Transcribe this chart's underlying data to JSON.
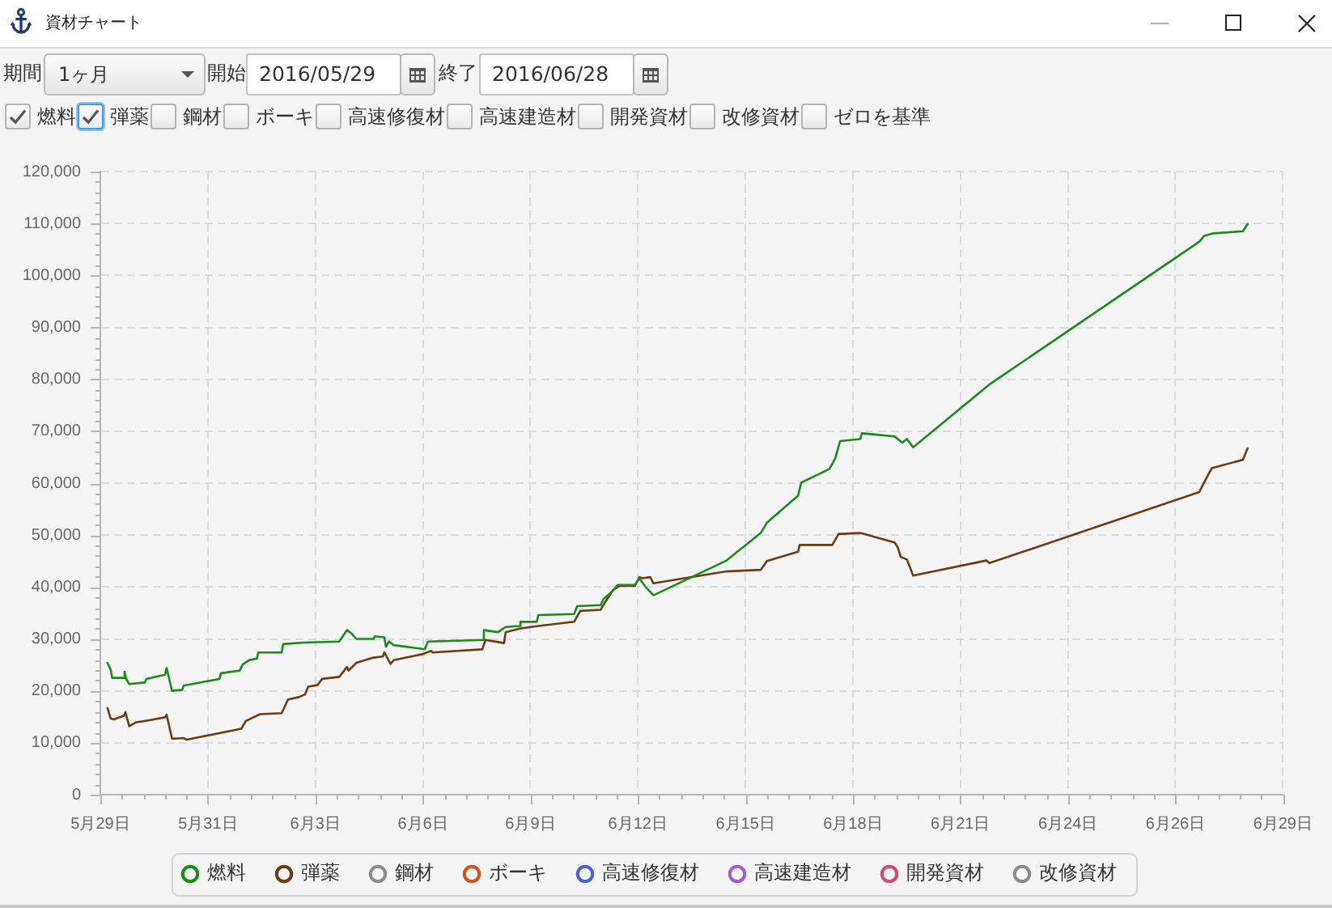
{
  "chart_data": {
    "type": "line",
    "title": "資材チャート",
    "annotations": [
      "期間",
      "1ヶ月",
      "開始",
      "2016/05/29",
      "終了",
      "2016/06/28",
      "ゼロを基準"
    ],
    "series": [
      {
        "name": "燃料",
        "color": "#1a8a1a",
        "x": [
          "2016-05-29T07:00",
          "2016-05-29T09:00",
          "2016-05-29T10:00",
          "2016-05-29T17:30",
          "2016-05-29T18:00",
          "2016-05-29T19:00",
          "2016-05-29T21:00",
          "2016-05-30T07:00",
          "2016-05-30T08:00",
          "2016-05-30T20:00",
          "2016-05-30T21:00",
          "2016-05-31T00:30",
          "2016-05-31T07:00",
          "2016-05-31T08:00",
          "2016-06-01T07:00",
          "2016-06-01T08:00",
          "2016-06-01T20:00",
          "2016-06-01T22:00",
          "2016-06-02T02:00",
          "2016-06-02T07:00",
          "2016-06-02T08:00",
          "2016-06-02T23:00",
          "2016-06-03T00:00",
          "2016-06-03T13:00",
          "2016-06-04T12:00",
          "2016-06-04T17:00",
          "2016-06-04T20:00",
          "2016-06-04T23:00",
          "2016-06-05T10:00",
          "2016-06-05T11:00",
          "2016-06-05T17:00",
          "2016-06-05T18:00",
          "2016-06-05T20:00",
          "2016-06-05T23:00",
          "2016-06-06T07:00",
          "2016-06-06T19:00",
          "2016-06-06T21:00",
          "2016-06-07T20:00",
          "2016-06-08T08:30",
          "2016-06-08T09:00",
          "2016-06-08T18:00",
          "2016-06-08T23:00",
          "2016-06-09T08:00",
          "2016-06-09T08:30",
          "2016-06-09T19:00",
          "2016-06-09T20:00",
          "2016-06-10T19:00",
          "2016-06-10T21:00",
          "2016-06-11T12:00",
          "2016-06-11T14:00",
          "2016-06-11T19:00",
          "2016-06-11T23:00",
          "2016-06-12T10:00",
          "2016-06-12T13:00",
          "2016-06-12T17:00",
          "2016-06-12T22:00",
          "2016-06-14T21:00",
          "2016-06-15T19:00",
          "2016-06-15T23:00",
          "2016-06-16T19:00",
          "2016-06-16T21:00",
          "2016-06-17T15:00",
          "2016-06-17T17:00",
          "2016-06-17T19:00",
          "2016-06-17T22:00",
          "2016-06-18T11:00",
          "2016-06-18T12:00",
          "2016-06-19T09:00",
          "2016-06-19T14:00",
          "2016-06-19T17:00",
          "2016-06-19T21:00",
          "2016-06-21T18:00",
          "2016-06-21T22:00",
          "2016-06-27T13:00",
          "2016-06-27T16:00",
          "2016-06-27T22:00",
          "2016-06-28T17:00",
          "2016-06-28T20:00"
        ],
        "values": [
          25400,
          24100,
          22500,
          22500,
          23700,
          22300,
          21300,
          21600,
          22300,
          23100,
          24400,
          20000,
          20200,
          21000,
          22300,
          23400,
          23900,
          25100,
          25900,
          26200,
          27400,
          27400,
          29000,
          29300,
          29500,
          31700,
          31000,
          30000,
          30000,
          30500,
          30300,
          28500,
          29500,
          28800,
          28500,
          28000,
          29500,
          29700,
          29800,
          31700,
          31300,
          32300,
          32500,
          33300,
          33300,
          34600,
          34800,
          36300,
          36500,
          37700,
          39000,
          40400,
          40400,
          41600,
          40000,
          38400,
          45100,
          50400,
          52400,
          57600,
          60100,
          62700,
          63700,
          64900,
          68100,
          68500,
          69600,
          69000,
          67800,
          68500,
          66900,
          78000,
          79000,
          106500,
          107600,
          108100,
          108500,
          109900
        ]
      },
      {
        "name": "弾薬",
        "color": "#6b3c14",
        "x": [
          "2016-05-29T07:00",
          "2016-05-29T09:00",
          "2016-05-29T11:00",
          "2016-05-29T17:30",
          "2016-05-29T18:30",
          "2016-05-29T21:00",
          "2016-05-30T01:00",
          "2016-05-30T09:00",
          "2016-05-30T20:00",
          "2016-05-30T21:00",
          "2016-05-31T00:30",
          "2016-05-31T08:00",
          "2016-05-31T10:00",
          "2016-06-01T21:00",
          "2016-06-02T00:00",
          "2016-06-02T09:00",
          "2016-06-02T23:00",
          "2016-06-03T03:00",
          "2016-06-03T10:00",
          "2016-06-03T14:00",
          "2016-06-03T16:00",
          "2016-06-03T22:00",
          "2016-06-04T01:00",
          "2016-06-04T12:00",
          "2016-06-04T17:00",
          "2016-06-04T18:00",
          "2016-06-04T23:00",
          "2016-06-05T10:00",
          "2016-06-05T16:00",
          "2016-06-05T17:00",
          "2016-06-05T21:00",
          "2016-06-05T23:00",
          "2016-06-06T07:00",
          "2016-06-06T18:00",
          "2016-06-06T23:00",
          "2016-06-07T00:00",
          "2016-06-08T08:00",
          "2016-06-08T10:00",
          "2016-06-08T22:00",
          "2016-06-08T23:00",
          "2016-06-09T08:00",
          "2016-06-09T20:00",
          "2016-06-10T19:00",
          "2016-06-10T23:00",
          "2016-06-11T12:00",
          "2016-06-11T15:00",
          "2016-06-11T20:00",
          "2016-06-12T00:00",
          "2016-06-12T10:00",
          "2016-06-12T13:00",
          "2016-06-12T15:00",
          "2016-06-12T20:00",
          "2016-06-12T22:00",
          "2016-06-14T21:00",
          "2016-06-15T19:00",
          "2016-06-15T23:00",
          "2016-06-16T19:00",
          "2016-06-16T20:00",
          "2016-06-17T17:00",
          "2016-06-17T21:00",
          "2016-06-18T11:00",
          "2016-06-19T09:00",
          "2016-06-19T11:00",
          "2016-06-19T13:00",
          "2016-06-19T17:00",
          "2016-06-19T21:00",
          "2016-06-21T20:00",
          "2016-06-21T22:00",
          "2016-06-27T13:00",
          "2016-06-27T16:00",
          "2016-06-27T21:00",
          "2016-06-28T17:00",
          "2016-06-28T20:00"
        ],
        "values": [
          16700,
          14700,
          14500,
          15200,
          15900,
          13200,
          13900,
          14300,
          14900,
          15400,
          10800,
          10900,
          10600,
          12700,
          14200,
          15500,
          15700,
          18300,
          18800,
          19300,
          20800,
          21100,
          22300,
          22700,
          24600,
          23900,
          25400,
          26400,
          26600,
          27400,
          25200,
          25900,
          26400,
          27100,
          27700,
          27400,
          28000,
          29800,
          29200,
          31300,
          32000,
          32500,
          33300,
          35400,
          35600,
          37100,
          39400,
          40200,
          40200,
          41900,
          41700,
          41900,
          40700,
          43000,
          43300,
          45000,
          46800,
          48100,
          48100,
          50200,
          50400,
          48600,
          47700,
          45800,
          45300,
          42200,
          45100,
          44600,
          58300,
          60100,
          62900,
          64500,
          66700
        ]
      },
      {
        "name": "鋼材",
        "color": "#8c8c8c"
      },
      {
        "name": "ボーキ",
        "color": "#d2521e"
      },
      {
        "name": "高速修復材",
        "color": "#4b5fd6"
      },
      {
        "name": "高速建造材",
        "color": "#a45ad6"
      },
      {
        "name": "開発資材",
        "color": "#d24a72"
      },
      {
        "name": "改修資材",
        "color": "#8a8a8a"
      }
    ],
    "xlim": [
      "2016-05-29T02:24",
      "2016-06-29T18:43"
    ],
    "xticks": [
      {
        "value": "2016-05-29T02:24",
        "label": "5月29日"
      },
      {
        "value": "2016-05-29T16:13",
        "label": null
      },
      {
        "value": "2016-05-30T06:03",
        "label": null
      },
      {
        "value": "2016-05-30T19:52",
        "label": null
      },
      {
        "value": "2016-05-31T09:42",
        "label": null
      },
      {
        "value": "2016-05-31T23:31",
        "label": "5月31日"
      },
      {
        "value": "2016-06-01T13:21",
        "label": null
      },
      {
        "value": "2016-06-02T03:10",
        "label": null
      },
      {
        "value": "2016-06-02T17:00",
        "label": null
      },
      {
        "value": "2016-06-03T06:49",
        "label": null
      },
      {
        "value": "2016-06-03T20:38",
        "label": "6月3日"
      },
      {
        "value": "2016-06-04T10:28",
        "label": null
      },
      {
        "value": "2016-06-05T00:17",
        "label": null
      },
      {
        "value": "2016-06-05T14:07",
        "label": null
      },
      {
        "value": "2016-06-06T03:56",
        "label": null
      },
      {
        "value": "2016-06-06T17:46",
        "label": "6月6日"
      },
      {
        "value": "2016-06-07T07:35",
        "label": null
      },
      {
        "value": "2016-06-07T21:24",
        "label": null
      },
      {
        "value": "2016-06-08T11:14",
        "label": null
      },
      {
        "value": "2016-06-09T01:03",
        "label": null
      },
      {
        "value": "2016-06-09T14:53",
        "label": "6月9日"
      },
      {
        "value": "2016-06-10T04:42",
        "label": null
      },
      {
        "value": "2016-06-10T18:32",
        "label": null
      },
      {
        "value": "2016-06-11T08:21",
        "label": null
      },
      {
        "value": "2016-06-11T22:11",
        "label": null
      },
      {
        "value": "2016-06-12T12:00",
        "label": "6月12日"
      },
      {
        "value": "2016-06-13T01:49",
        "label": null
      },
      {
        "value": "2016-06-13T15:39",
        "label": null
      },
      {
        "value": "2016-06-14T05:28",
        "label": null
      },
      {
        "value": "2016-06-14T19:18",
        "label": null
      },
      {
        "value": "2016-06-15T09:07",
        "label": "6月15日"
      },
      {
        "value": "2016-06-15T22:57",
        "label": null
      },
      {
        "value": "2016-06-16T12:46",
        "label": null
      },
      {
        "value": "2016-06-17T02:36",
        "label": null
      },
      {
        "value": "2016-06-17T16:25",
        "label": null
      },
      {
        "value": "2016-06-18T06:14",
        "label": "6月18日"
      },
      {
        "value": "2016-06-18T20:04",
        "label": null
      },
      {
        "value": "2016-06-19T09:53",
        "label": null
      },
      {
        "value": "2016-06-19T23:43",
        "label": null
      },
      {
        "value": "2016-06-20T13:32",
        "label": null
      },
      {
        "value": "2016-06-21T03:22",
        "label": "6月21日"
      },
      {
        "value": "2016-06-21T17:11",
        "label": null
      },
      {
        "value": "2016-06-22T07:00",
        "label": null
      },
      {
        "value": "2016-06-22T20:50",
        "label": null
      },
      {
        "value": "2016-06-23T10:39",
        "label": null
      },
      {
        "value": "2016-06-24T00:29",
        "label": "6月24日"
      },
      {
        "value": "2016-06-24T14:18",
        "label": null
      },
      {
        "value": "2016-06-25T04:08",
        "label": null
      },
      {
        "value": "2016-06-25T17:57",
        "label": null
      },
      {
        "value": "2016-06-26T07:47",
        "label": null
      },
      {
        "value": "2016-06-26T21:36",
        "label": "6月26日"
      },
      {
        "value": "2016-06-27T11:25",
        "label": null
      },
      {
        "value": "2016-06-28T01:15",
        "label": null
      },
      {
        "value": "2016-06-28T15:04",
        "label": null
      },
      {
        "value": "2016-06-29T04:54",
        "label": null
      },
      {
        "value": "2016-06-29T18:43",
        "label": "6月29日"
      }
    ],
    "ylim": [
      0,
      120000
    ],
    "yticks": [
      {
        "value": 0,
        "label": "0"
      },
      {
        "value": 2000,
        "label": null
      },
      {
        "value": 4000,
        "label": null
      },
      {
        "value": 6000,
        "label": null
      },
      {
        "value": 8000,
        "label": null
      },
      {
        "value": 10000,
        "label": "10,000"
      },
      {
        "value": 12000,
        "label": null
      },
      {
        "value": 14000,
        "label": null
      },
      {
        "value": 16000,
        "label": null
      },
      {
        "value": 18000,
        "label": null
      },
      {
        "value": 20000,
        "label": "20,000"
      },
      {
        "value": 22000,
        "label": null
      },
      {
        "value": 24000,
        "label": null
      },
      {
        "value": 26000,
        "label": null
      },
      {
        "value": 28000,
        "label": null
      },
      {
        "value": 30000,
        "label": "30,000"
      },
      {
        "value": 32000,
        "label": null
      },
      {
        "value": 34000,
        "label": null
      },
      {
        "value": 36000,
        "label": null
      },
      {
        "value": 38000,
        "label": null
      },
      {
        "value": 40000,
        "label": "40,000"
      },
      {
        "value": 42000,
        "label": null
      },
      {
        "value": 44000,
        "label": null
      },
      {
        "value": 46000,
        "label": null
      },
      {
        "value": 48000,
        "label": null
      },
      {
        "value": 50000,
        "label": "50,000"
      },
      {
        "value": 52000,
        "label": null
      },
      {
        "value": 54000,
        "label": null
      },
      {
        "value": 56000,
        "label": null
      },
      {
        "value": 58000,
        "label": null
      },
      {
        "value": 60000,
        "label": "60,000"
      },
      {
        "value": 62000,
        "label": null
      },
      {
        "value": 64000,
        "label": null
      },
      {
        "value": 66000,
        "label": null
      },
      {
        "value": 68000,
        "label": null
      },
      {
        "value": 70000,
        "label": "70,000"
      },
      {
        "value": 72000,
        "label": null
      },
      {
        "value": 74000,
        "label": null
      },
      {
        "value": 76000,
        "label": null
      },
      {
        "value": 78000,
        "label": null
      },
      {
        "value": 80000,
        "label": "80,000"
      },
      {
        "value": 82000,
        "label": null
      },
      {
        "value": 84000,
        "label": null
      },
      {
        "value": 86000,
        "label": null
      },
      {
        "value": 88000,
        "label": null
      },
      {
        "value": 90000,
        "label": "90,000"
      },
      {
        "value": 92000,
        "label": null
      },
      {
        "value": 94000,
        "label": null
      },
      {
        "value": 96000,
        "label": null
      },
      {
        "value": 98000,
        "label": null
      },
      {
        "value": 100000,
        "label": "100,000"
      },
      {
        "value": 102000,
        "label": null
      },
      {
        "value": 104000,
        "label": null
      },
      {
        "value": 106000,
        "label": null
      },
      {
        "value": 108000,
        "label": null
      },
      {
        "value": 110000,
        "label": "110,000"
      },
      {
        "value": 112000,
        "label": null
      },
      {
        "value": 114000,
        "label": null
      },
      {
        "value": 116000,
        "label": null
      },
      {
        "value": 118000,
        "label": null
      },
      {
        "value": 120000,
        "label": "120,000"
      }
    ],
    "grid": true,
    "legend": "bottom",
    "marker": "none",
    "line_style": "solid"
  }
}
